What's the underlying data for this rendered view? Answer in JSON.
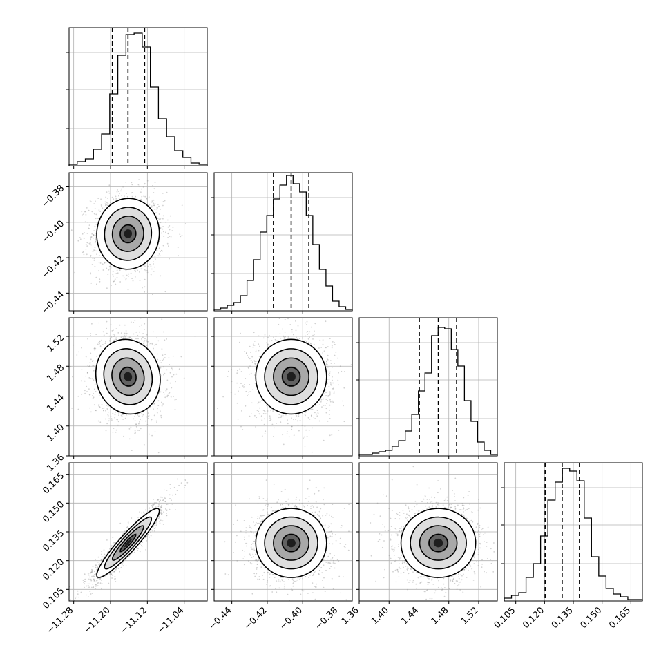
{
  "chart_data": {
    "type": "corner",
    "parameters": [
      {
        "ticks": [
          "−11.28",
          "−11.20",
          "−11.12",
          "−11.04"
        ],
        "tick_values": [
          -11.28,
          -11.2,
          -11.12,
          -11.04
        ],
        "range": [
          -11.29,
          -10.99
        ],
        "quantiles": [
          -11.196,
          -11.162,
          -11.126
        ]
      },
      {
        "ticks": [
          "−0.44",
          "−0.42",
          "−0.40",
          "−0.38"
        ],
        "tick_values": [
          -0.44,
          -0.42,
          -0.4,
          -0.38
        ],
        "range": [
          -0.45,
          -0.372
        ],
        "quantiles": [
          -0.4165,
          -0.4065,
          -0.3965
        ]
      },
      {
        "ticks": [
          "1.36",
          "1.40",
          "1.44",
          "1.48",
          "1.52"
        ],
        "tick_values": [
          1.36,
          1.4,
          1.44,
          1.48,
          1.52
        ],
        "range": [
          1.36,
          1.545
        ],
        "quantiles": [
          1.4405,
          1.466,
          1.4905
        ]
      },
      {
        "ticks": [
          "0.105",
          "0.120",
          "0.135",
          "0.150",
          "0.165"
        ],
        "tick_values": [
          0.105,
          0.12,
          0.135,
          0.15,
          0.165
        ],
        "range": [
          0.099,
          0.171
        ],
        "quantiles": [
          0.1203,
          0.1292,
          0.1382
        ]
      }
    ],
    "histograms": [
      [
        0.01,
        0.03,
        0.05,
        0.12,
        0.23,
        0.52,
        0.8,
        0.95,
        0.96,
        0.86,
        0.57,
        0.34,
        0.21,
        0.11,
        0.06,
        0.02,
        0.01
      ],
      [
        0.01,
        0.02,
        0.04,
        0.06,
        0.11,
        0.22,
        0.37,
        0.57,
        0.69,
        0.81,
        0.91,
        0.98,
        0.92,
        0.86,
        0.69,
        0.48,
        0.3,
        0.18,
        0.07,
        0.03,
        0.01
      ],
      [
        0.01,
        0.01,
        0.02,
        0.03,
        0.04,
        0.07,
        0.11,
        0.18,
        0.3,
        0.47,
        0.6,
        0.87,
        0.93,
        0.92,
        0.77,
        0.65,
        0.4,
        0.25,
        0.1,
        0.04,
        0.01
      ],
      [
        0.02,
        0.04,
        0.06,
        0.17,
        0.27,
        0.47,
        0.73,
        0.86,
        0.96,
        0.94,
        0.87,
        0.6,
        0.32,
        0.18,
        0.09,
        0.05,
        0.03,
        0.01,
        0.01
      ]
    ],
    "pairs": [
      {
        "x": 0,
        "y": 1,
        "mean": [
          -11.162,
          -0.4065
        ],
        "sd": [
          0.034,
          0.01
        ],
        "corr": 0.02
      },
      {
        "x": 0,
        "y": 2,
        "mean": [
          -11.162,
          1.466
        ],
        "sd": [
          0.035,
          0.025
        ],
        "corr": -0.08
      },
      {
        "x": 1,
        "y": 2,
        "mean": [
          -0.4065,
          1.466
        ],
        "sd": [
          0.01,
          0.025
        ],
        "corr": 0.0
      },
      {
        "x": 0,
        "y": 3,
        "mean": [
          -11.162,
          0.1292
        ],
        "sd": [
          0.034,
          0.009
        ],
        "corr": 0.93
      },
      {
        "x": 1,
        "y": 3,
        "mean": [
          -0.4065,
          0.1292
        ],
        "sd": [
          0.01,
          0.009
        ],
        "corr": 0.0
      },
      {
        "x": 2,
        "y": 3,
        "mean": [
          1.466,
          0.1292
        ],
        "sd": [
          0.025,
          0.009
        ],
        "corr": 0.0
      }
    ],
    "contour_levels_sigma": [
      0.5,
      1.0,
      1.5,
      2.0
    ],
    "grid": true,
    "title": "",
    "xlabel": "",
    "ylabel": ""
  }
}
